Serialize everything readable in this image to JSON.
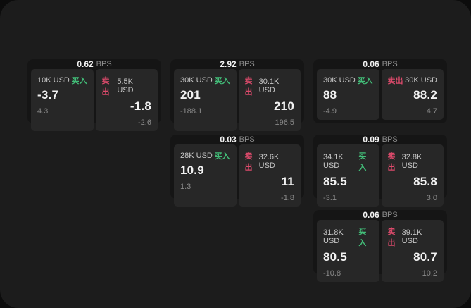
{
  "labels": {
    "bps_unit": "BPS",
    "buy": "买入",
    "sell": "卖出"
  },
  "colors": {
    "outer_background": "#0c0c0c",
    "panel_background": "#1c1c1c",
    "card_background": "#151515",
    "tile_background": "#272727",
    "buy_accent": "#42bd78",
    "sell_accent": "#dc4a6b"
  },
  "cards": [
    {
      "bps": "0.62",
      "buy": {
        "amount": "10K USD",
        "price": "-3.7",
        "delta": "4.3"
      },
      "sell": {
        "amount": "5.5K USD",
        "price": "-1.8",
        "delta": "-2.6"
      }
    },
    {
      "bps": "2.92",
      "buy": {
        "amount": "30K USD",
        "price": "201",
        "delta": "-188.1"
      },
      "sell": {
        "amount": "30.1K USD",
        "price": "210",
        "delta": "196.5"
      }
    },
    {
      "bps": "0.06",
      "buy": {
        "amount": "30K USD",
        "price": "88",
        "delta": "-4.9"
      },
      "sell": {
        "amount": "30K USD",
        "price": "88.2",
        "delta": "4.7"
      }
    },
    {
      "bps": "0.03",
      "buy": {
        "amount": "28K USD",
        "price": "10.9",
        "delta": "1.3"
      },
      "sell": {
        "amount": "32.6K USD",
        "price": "11",
        "delta": "-1.8"
      }
    },
    {
      "bps": "0.09",
      "buy": {
        "amount": "34.1K USD",
        "price": "85.5",
        "delta": "-3.1"
      },
      "sell": {
        "amount": "32.8K USD",
        "price": "85.8",
        "delta": "3.0"
      }
    },
    {
      "bps": "0.06",
      "buy": {
        "amount": "31.8K USD",
        "price": "80.5",
        "delta": "-10.8"
      },
      "sell": {
        "amount": "39.1K USD",
        "price": "80.7",
        "delta": "10.2"
      }
    }
  ]
}
